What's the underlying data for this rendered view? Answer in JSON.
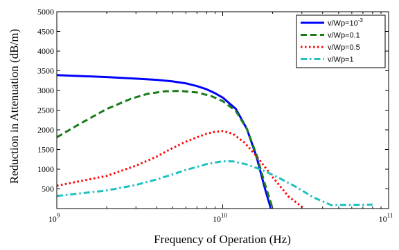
{
  "chart_data": {
    "type": "line",
    "xlabel": "Frequency of Operation (Hz)",
    "ylabel": "Reduction in Attenuation (dB/m)",
    "x_scale": "log",
    "xlim": [
      1000000000,
      100000000000
    ],
    "ylim": [
      0,
      5000
    ],
    "x_ticks": [
      {
        "value": 1000000000,
        "base": "10",
        "exp": "9"
      },
      {
        "value": 10000000000,
        "base": "10",
        "exp": "10"
      },
      {
        "value": 100000000000,
        "base": "10",
        "exp": "11"
      }
    ],
    "y_ticks": [
      500,
      1000,
      1500,
      2000,
      2500,
      3000,
      3500,
      4000,
      4500,
      5000
    ],
    "grid": false,
    "legend_position": "top-right",
    "series": [
      {
        "name": "v/Wp=10",
        "name_sup": "-3",
        "color": "#0000ff",
        "style": "solid",
        "x": [
          1000000000.0,
          2000000000.0,
          3000000000.0,
          4000000000.0,
          5000000000.0,
          6000000000.0,
          7000000000.0,
          8000000000.0,
          9000000000.0,
          10000000000.0,
          12000000000.0,
          14000000000.0,
          16000000000.0,
          18000000000.0,
          19500000000.0
        ],
        "y": [
          3390,
          3340,
          3300,
          3270,
          3230,
          3180,
          3110,
          3030,
          2930,
          2820,
          2530,
          2020,
          1310,
          500,
          0
        ]
      },
      {
        "name": "v/Wp=0.1",
        "name_sup": "",
        "color": "#1a7a1a",
        "style": "dashed",
        "x": [
          1000000000.0,
          1400000000.0,
          2000000000.0,
          2800000000.0,
          3500000000.0,
          4500000000.0,
          5500000000.0,
          7000000000.0,
          8500000000.0,
          10000000000.0,
          12000000000.0,
          14000000000.0,
          16000000000.0,
          18000000000.0,
          20000000000.0
        ],
        "y": [
          1810,
          2170,
          2530,
          2790,
          2910,
          2980,
          2990,
          2950,
          2860,
          2730,
          2480,
          2020,
          1360,
          610,
          0
        ]
      },
      {
        "name": "v/Wp=0.5",
        "name_sup": "",
        "color": "#ff0000",
        "style": "dotted",
        "x": [
          1000000000.0,
          2000000000.0,
          3000000000.0,
          4000000000.0,
          5000000000.0,
          6000000000.0,
          7000000000.0,
          8000000000.0,
          9000000000.0,
          10000000000.0,
          11500000000.0,
          13500000000.0,
          16000000000.0,
          20000000000.0,
          25000000000.0,
          31000000000.0
        ],
        "y": [
          580,
          830,
          1090,
          1320,
          1540,
          1700,
          1810,
          1900,
          1950,
          1970,
          1900,
          1680,
          1330,
          800,
          300,
          0
        ]
      },
      {
        "name": "v/Wp=1",
        "name_sup": "",
        "color": "#20c0c0",
        "style": "dashdot",
        "x": [
          1000000000.0,
          2000000000.0,
          3000000000.0,
          4000000000.0,
          5000000000.0,
          6000000000.0,
          7000000000.0,
          8000000000.0,
          9000000000.0,
          10000000000.0,
          11500000000.0,
          14000000000.0,
          18000000000.0,
          22000000000.0,
          28000000000.0,
          35000000000.0,
          45000000000.0,
          80000000000.0
        ],
        "y": [
          320,
          460,
          600,
          740,
          870,
          980,
          1060,
          1130,
          1170,
          1200,
          1200,
          1120,
          950,
          770,
          540,
          290,
          90,
          100
        ]
      }
    ]
  }
}
